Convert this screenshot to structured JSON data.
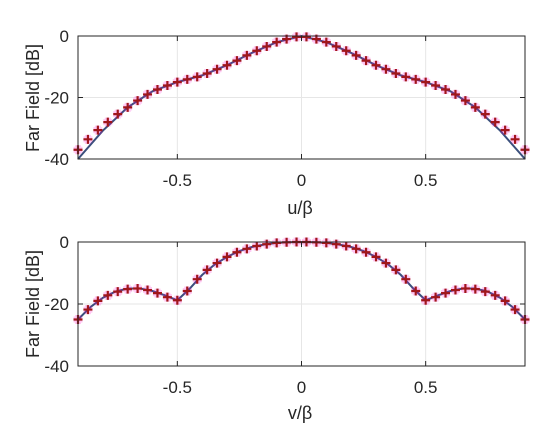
{
  "colors": {
    "curve": "#3a4f7c",
    "marker": "#a0161b",
    "halo": "#ff00cc",
    "grid": "#e6e6e6",
    "axis": "#262626"
  },
  "chart_data": [
    {
      "type": "line",
      "xlabel": "u/β",
      "ylabel": "Far Field [dB]",
      "xlim": [
        -0.9,
        0.9
      ],
      "ylim": [
        -40,
        0
      ],
      "xticks": [
        -0.5,
        0,
        0.5
      ],
      "yticks": [
        0,
        -20,
        -40
      ],
      "xtick_labels": [
        "-0.5",
        "0",
        "0.5"
      ],
      "ytick_labels": [
        "0",
        "-20",
        "-40"
      ],
      "grid": true,
      "series": [
        {
          "style": "solid-line",
          "x": [
            -0.9,
            -0.8,
            -0.7,
            -0.6,
            -0.5,
            -0.4,
            -0.3,
            -0.2,
            -0.1,
            0.0,
            0.1,
            0.2,
            0.3,
            0.4,
            0.5,
            0.6,
            0.7,
            0.8,
            0.9
          ],
          "y": [
            -40.0,
            -30.8,
            -23.2,
            -18.0,
            -15.0,
            -12.8,
            -9.5,
            -5.5,
            -2.0,
            0.0,
            -2.0,
            -5.5,
            -9.5,
            -12.8,
            -15.0,
            -18.0,
            -23.2,
            -30.8,
            -40.0
          ]
        },
        {
          "style": "plus-markers",
          "x": [
            -0.9,
            -0.86,
            -0.82,
            -0.78,
            -0.74,
            -0.7,
            -0.66,
            -0.62,
            -0.58,
            -0.54,
            -0.5,
            -0.46,
            -0.42,
            -0.38,
            -0.34,
            -0.3,
            -0.26,
            -0.22,
            -0.18,
            -0.14,
            -0.1,
            -0.06,
            -0.02,
            0.02,
            0.06,
            0.1,
            0.14,
            0.18,
            0.22,
            0.26,
            0.3,
            0.34,
            0.38,
            0.42,
            0.46,
            0.5,
            0.54,
            0.58,
            0.62,
            0.66,
            0.7,
            0.74,
            0.78,
            0.82,
            0.86,
            0.9
          ],
          "y": [
            -37.0,
            -33.6,
            -30.6,
            -28.0,
            -25.4,
            -23.2,
            -21.0,
            -19.0,
            -17.4,
            -16.1,
            -15.0,
            -14.1,
            -13.3,
            -12.2,
            -10.8,
            -9.5,
            -8.0,
            -6.3,
            -4.8,
            -3.4,
            -2.0,
            -1.0,
            -0.3,
            -0.3,
            -1.0,
            -2.0,
            -3.4,
            -4.8,
            -6.3,
            -8.0,
            -9.5,
            -10.8,
            -12.2,
            -13.3,
            -14.1,
            -15.0,
            -16.1,
            -17.4,
            -19.0,
            -21.0,
            -23.2,
            -25.4,
            -28.0,
            -30.6,
            -33.6,
            -37.0
          ]
        }
      ]
    },
    {
      "type": "line",
      "xlabel": "v/β",
      "ylabel": "Far Field [dB]",
      "xlim": [
        -0.9,
        0.9
      ],
      "ylim": [
        -40,
        0
      ],
      "xticks": [
        -0.5,
        0,
        0.5
      ],
      "yticks": [
        0,
        -20,
        -40
      ],
      "xtick_labels": [
        "-0.5",
        "0",
        "0.5"
      ],
      "ytick_labels": [
        "0",
        "-20",
        "-40"
      ],
      "grid": true,
      "series": [
        {
          "style": "solid-line",
          "x": [
            -0.9,
            -0.85,
            -0.8,
            -0.75,
            -0.7,
            -0.65,
            -0.6,
            -0.55,
            -0.5,
            -0.45,
            -0.4,
            -0.35,
            -0.3,
            -0.25,
            -0.2,
            -0.15,
            -0.1,
            -0.05,
            0.0,
            0.05,
            0.1,
            0.15,
            0.2,
            0.25,
            0.3,
            0.35,
            0.4,
            0.45,
            0.5,
            0.55,
            0.6,
            0.65,
            0.7,
            0.75,
            0.8,
            0.85,
            0.9
          ],
          "y": [
            -25.0,
            -21.0,
            -18.0,
            -16.0,
            -15.0,
            -15.0,
            -15.8,
            -17.2,
            -18.8,
            -15.0,
            -10.6,
            -7.3,
            -4.8,
            -2.9,
            -1.6,
            -0.8,
            -0.3,
            -0.1,
            0.0,
            -0.1,
            -0.3,
            -0.8,
            -1.6,
            -2.9,
            -4.8,
            -7.3,
            -10.6,
            -15.0,
            -18.8,
            -17.2,
            -15.8,
            -15.0,
            -15.0,
            -16.0,
            -18.0,
            -21.0,
            -25.0
          ]
        },
        {
          "style": "plus-markers",
          "x": [
            -0.9,
            -0.86,
            -0.82,
            -0.78,
            -0.74,
            -0.7,
            -0.66,
            -0.62,
            -0.58,
            -0.54,
            -0.5,
            -0.46,
            -0.42,
            -0.38,
            -0.34,
            -0.3,
            -0.26,
            -0.22,
            -0.18,
            -0.14,
            -0.1,
            -0.06,
            -0.02,
            0.02,
            0.06,
            0.1,
            0.14,
            0.18,
            0.22,
            0.26,
            0.3,
            0.34,
            0.38,
            0.42,
            0.46,
            0.5,
            0.54,
            0.58,
            0.62,
            0.66,
            0.7,
            0.74,
            0.78,
            0.82,
            0.86,
            0.9
          ],
          "y": [
            -25.0,
            -21.8,
            -19.0,
            -17.2,
            -16.0,
            -15.2,
            -15.0,
            -15.5,
            -16.5,
            -17.8,
            -18.8,
            -15.8,
            -12.0,
            -9.0,
            -6.8,
            -4.8,
            -3.3,
            -2.2,
            -1.3,
            -0.7,
            -0.3,
            -0.1,
            0.0,
            0.0,
            -0.1,
            -0.3,
            -0.7,
            -1.3,
            -2.2,
            -3.3,
            -4.8,
            -6.8,
            -9.0,
            -12.0,
            -15.8,
            -18.8,
            -17.8,
            -16.5,
            -15.5,
            -15.0,
            -15.2,
            -16.0,
            -17.2,
            -19.0,
            -21.8,
            -25.0
          ]
        }
      ]
    }
  ]
}
